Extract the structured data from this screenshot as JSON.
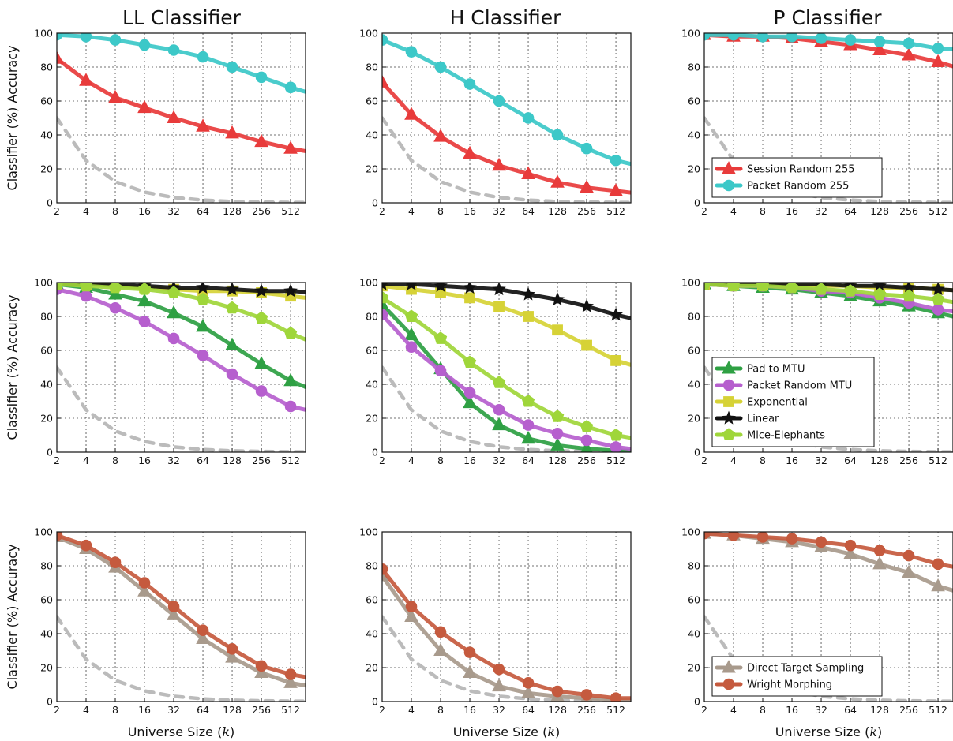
{
  "figure": {
    "column_titles": [
      "LL Classifier",
      "H Classifier",
      "P Classifier"
    ],
    "ylabel": "Classifier (%) Accuracy",
    "xlabel": "Universe Size (",
    "xlabel_var": "k",
    "xlabel_end": ")"
  },
  "chart_data": [
    {
      "type": "line",
      "row": 0,
      "col": 0,
      "title": "LL Classifier",
      "ylabel": "Classifier (%) Accuracy",
      "xlabel": "",
      "x": [
        2,
        4,
        8,
        16,
        32,
        64,
        128,
        256,
        512,
        1024
      ],
      "xticks": [
        "2",
        "4",
        "8",
        "16",
        "32",
        "64",
        "128",
        "256",
        "512"
      ],
      "yticks": [
        0,
        20,
        40,
        60,
        80,
        100
      ],
      "ylim": [
        0,
        100
      ],
      "grid": true,
      "xscale": "log2",
      "series": [
        {
          "name": "",
          "color": "#bbbbbb",
          "style": "dashed",
          "marker": "none",
          "values": [
            50,
            25,
            12.5,
            6.3,
            3.1,
            1.6,
            0.8,
            0.4,
            0.2,
            0.1
          ]
        },
        {
          "name": "Session Random 255",
          "color": "#e83b3b",
          "marker": "triangle",
          "values": [
            85,
            72,
            62,
            56,
            50,
            45,
            41,
            36,
            32,
            29
          ]
        },
        {
          "name": "Packet Random 255",
          "color": "#3cc8c8",
          "marker": "circle",
          "values": [
            99,
            98,
            96,
            93,
            90,
            86,
            80,
            74,
            68,
            63
          ]
        }
      ]
    },
    {
      "type": "line",
      "row": 0,
      "col": 1,
      "title": "H Classifier",
      "ylabel": "",
      "xlabel": "",
      "x": [
        2,
        4,
        8,
        16,
        32,
        64,
        128,
        256,
        512,
        1024
      ],
      "xticks": [
        "2",
        "4",
        "8",
        "16",
        "32",
        "64",
        "128",
        "256",
        "512"
      ],
      "yticks": [
        0,
        20,
        40,
        60,
        80,
        100
      ],
      "ylim": [
        0,
        100
      ],
      "grid": true,
      "xscale": "log2",
      "series": [
        {
          "name": "",
          "color": "#bbbbbb",
          "style": "dashed",
          "marker": "none",
          "values": [
            50,
            25,
            12.5,
            6.3,
            3.1,
            1.6,
            0.8,
            0.4,
            0.2,
            0.1
          ]
        },
        {
          "name": "Session Random 255",
          "color": "#e83b3b",
          "marker": "triangle",
          "values": [
            71,
            52,
            39,
            29,
            22,
            17,
            12,
            9,
            7,
            5
          ]
        },
        {
          "name": "Packet Random 255",
          "color": "#3cc8c8",
          "marker": "circle",
          "values": [
            96,
            89,
            80,
            70,
            60,
            50,
            40,
            32,
            25,
            21
          ]
        }
      ]
    },
    {
      "type": "line",
      "row": 0,
      "col": 2,
      "title": "P Classifier",
      "ylabel": "",
      "xlabel": "",
      "x": [
        2,
        4,
        8,
        16,
        32,
        64,
        128,
        256,
        512,
        1024
      ],
      "xticks": [
        "2",
        "4",
        "8",
        "16",
        "32",
        "64",
        "128",
        "256",
        "512"
      ],
      "yticks": [
        0,
        20,
        40,
        60,
        80,
        100
      ],
      "ylim": [
        0,
        100
      ],
      "grid": true,
      "xscale": "log2",
      "legend": "lower-left",
      "series": [
        {
          "name": "",
          "color": "#bbbbbb",
          "style": "dashed",
          "marker": "none",
          "values": [
            50,
            25,
            12.5,
            6.3,
            3.1,
            1.6,
            0.8,
            0.4,
            0.2,
            0.1
          ]
        },
        {
          "name": "Session Random 255",
          "color": "#e83b3b",
          "marker": "triangle",
          "values": [
            99,
            98,
            98,
            97,
            95,
            93,
            90,
            87,
            83,
            78
          ]
        },
        {
          "name": "Packet Random 255",
          "color": "#3cc8c8",
          "marker": "circle",
          "values": [
            99,
            99,
            98,
            98,
            97,
            96,
            95,
            94,
            91,
            90
          ]
        }
      ]
    },
    {
      "type": "line",
      "row": 1,
      "col": 0,
      "title": "",
      "ylabel": "Classifier (%) Accuracy",
      "xlabel": "",
      "x": [
        2,
        4,
        8,
        16,
        32,
        64,
        128,
        256,
        512,
        1024
      ],
      "xticks": [
        "2",
        "4",
        "8",
        "16",
        "32",
        "64",
        "128",
        "256",
        "512"
      ],
      "yticks": [
        0,
        20,
        40,
        60,
        80,
        100
      ],
      "ylim": [
        0,
        100
      ],
      "grid": true,
      "xscale": "log2",
      "series": [
        {
          "name": "",
          "color": "#bbbbbb",
          "style": "dashed",
          "marker": "none",
          "values": [
            50,
            25,
            12.5,
            6.3,
            3.1,
            1.6,
            0.8,
            0.4,
            0.2,
            0.1
          ]
        },
        {
          "name": "Pad to MTU",
          "color": "#2ea043",
          "marker": "triangle",
          "values": [
            99,
            97,
            93,
            89,
            82,
            74,
            63,
            52,
            42,
            35
          ]
        },
        {
          "name": "Packet Random MTU",
          "color": "#b65fce",
          "marker": "circle",
          "values": [
            96,
            92,
            85,
            77,
            67,
            57,
            46,
            36,
            27,
            23
          ]
        },
        {
          "name": "Exponential",
          "color": "#d6d236",
          "marker": "square",
          "values": [
            99,
            99,
            98,
            97,
            96,
            95,
            95,
            94,
            92,
            90
          ]
        },
        {
          "name": "Linear",
          "color": "#111111",
          "marker": "star",
          "values": [
            99,
            99,
            99,
            98,
            97,
            97,
            96,
            95,
            95,
            94
          ]
        },
        {
          "name": "Mice-Elephants",
          "color": "#9fd63a",
          "marker": "pentagon",
          "values": [
            99,
            98,
            97,
            96,
            94,
            90,
            85,
            79,
            70,
            63
          ]
        }
      ]
    },
    {
      "type": "line",
      "row": 1,
      "col": 1,
      "title": "",
      "ylabel": "",
      "xlabel": "",
      "x": [
        2,
        4,
        8,
        16,
        32,
        64,
        128,
        256,
        512,
        1024
      ],
      "xticks": [
        "2",
        "4",
        "8",
        "16",
        "32",
        "64",
        "128",
        "256",
        "512"
      ],
      "yticks": [
        0,
        20,
        40,
        60,
        80,
        100
      ],
      "ylim": [
        0,
        100
      ],
      "grid": true,
      "xscale": "log2",
      "series": [
        {
          "name": "",
          "color": "#bbbbbb",
          "style": "dashed",
          "marker": "none",
          "values": [
            50,
            25,
            12.5,
            6.3,
            3.1,
            1.6,
            0.8,
            0.4,
            0.2,
            0.1
          ]
        },
        {
          "name": "Pad to MTU",
          "color": "#2ea043",
          "marker": "triangle",
          "values": [
            87,
            69,
            49,
            29,
            16,
            8,
            4,
            2,
            1,
            0.5
          ]
        },
        {
          "name": "Packet Random MTU",
          "color": "#b65fce",
          "marker": "circle",
          "values": [
            81,
            62,
            48,
            35,
            25,
            16,
            11,
            7,
            3,
            1
          ]
        },
        {
          "name": "Exponential",
          "color": "#d6d236",
          "marker": "square",
          "values": [
            98,
            96,
            94,
            91,
            86,
            80,
            72,
            63,
            54,
            49
          ]
        },
        {
          "name": "Linear",
          "color": "#111111",
          "marker": "star",
          "values": [
            99,
            99,
            98,
            97,
            96,
            93,
            90,
            86,
            81,
            77
          ]
        },
        {
          "name": "Mice-Elephants",
          "color": "#9fd63a",
          "marker": "pentagon",
          "values": [
            91,
            80,
            67,
            53,
            41,
            30,
            21,
            15,
            10,
            7
          ]
        }
      ]
    },
    {
      "type": "line",
      "row": 1,
      "col": 2,
      "title": "",
      "ylabel": "",
      "xlabel": "",
      "x": [
        2,
        4,
        8,
        16,
        32,
        64,
        128,
        256,
        512,
        1024
      ],
      "xticks": [
        "2",
        "4",
        "8",
        "16",
        "32",
        "64",
        "128",
        "256",
        "512"
      ],
      "yticks": [
        0,
        20,
        40,
        60,
        80,
        100
      ],
      "ylim": [
        0,
        100
      ],
      "grid": true,
      "xscale": "log2",
      "legend": "lower-left",
      "series": [
        {
          "name": "",
          "color": "#bbbbbb",
          "style": "dashed",
          "marker": "none",
          "values": [
            50,
            25,
            12.5,
            6.3,
            3.1,
            1.6,
            0.8,
            0.4,
            0.2,
            0.1
          ]
        },
        {
          "name": "Pad to MTU",
          "color": "#2ea043",
          "marker": "triangle",
          "values": [
            99,
            98,
            97,
            96,
            94,
            92,
            89,
            86,
            82,
            78
          ]
        },
        {
          "name": "Packet Random MTU",
          "color": "#b65fce",
          "marker": "circle",
          "values": [
            99,
            98,
            98,
            97,
            95,
            94,
            91,
            88,
            84,
            82
          ]
        },
        {
          "name": "Exponential",
          "color": "#d6d236",
          "marker": "square",
          "values": [
            99,
            99,
            99,
            98,
            98,
            98,
            97,
            97,
            96,
            95
          ]
        },
        {
          "name": "Linear",
          "color": "#111111",
          "marker": "star",
          "values": [
            99,
            99,
            99,
            99,
            99,
            98,
            98,
            97,
            96,
            95
          ]
        },
        {
          "name": "Mice-Elephants",
          "color": "#9fd63a",
          "marker": "pentagon",
          "values": [
            99,
            98,
            98,
            97,
            96,
            95,
            93,
            92,
            90,
            87
          ]
        }
      ]
    },
    {
      "type": "line",
      "row": 2,
      "col": 0,
      "title": "",
      "ylabel": "Classifier (%) Accuracy",
      "xlabel": "Universe Size (k)",
      "x": [
        2,
        4,
        8,
        16,
        32,
        64,
        128,
        256,
        512,
        1024
      ],
      "xticks": [
        "2",
        "4",
        "8",
        "16",
        "32",
        "64",
        "128",
        "256",
        "512"
      ],
      "yticks": [
        0,
        20,
        40,
        60,
        80,
        100
      ],
      "ylim": [
        0,
        100
      ],
      "grid": true,
      "xscale": "log2",
      "series": [
        {
          "name": "",
          "color": "#bbbbbb",
          "style": "dashed",
          "marker": "none",
          "values": [
            50,
            25,
            12.5,
            6.3,
            3.1,
            1.6,
            0.8,
            0.4,
            0.2,
            0.1
          ]
        },
        {
          "name": "Direct Target Sampling",
          "color": "#a89a8c",
          "marker": "triangle",
          "values": [
            97,
            90,
            79,
            65,
            51,
            37,
            26,
            17,
            11,
            8
          ]
        },
        {
          "name": "Wright Morphing",
          "color": "#c55a3e",
          "marker": "circle",
          "values": [
            98,
            92,
            82,
            70,
            56,
            42,
            31,
            21,
            16,
            13
          ]
        }
      ]
    },
    {
      "type": "line",
      "row": 2,
      "col": 1,
      "title": "",
      "ylabel": "",
      "xlabel": "Universe Size (k)",
      "x": [
        2,
        4,
        8,
        16,
        32,
        64,
        128,
        256,
        512,
        1024
      ],
      "xticks": [
        "2",
        "4",
        "8",
        "16",
        "32",
        "64",
        "128",
        "256",
        "512"
      ],
      "yticks": [
        0,
        20,
        40,
        60,
        80,
        100
      ],
      "ylim": [
        0,
        100
      ],
      "grid": true,
      "xscale": "log2",
      "series": [
        {
          "name": "",
          "color": "#bbbbbb",
          "style": "dashed",
          "marker": "none",
          "values": [
            50,
            25,
            12.5,
            6.3,
            3.1,
            1.6,
            0.8,
            0.4,
            0.2,
            0.1
          ]
        },
        {
          "name": "Direct Target Sampling",
          "color": "#a89a8c",
          "marker": "triangle",
          "values": [
            74,
            50,
            30,
            17,
            9,
            5,
            3,
            2,
            1,
            1
          ]
        },
        {
          "name": "Wright Morphing",
          "color": "#c55a3e",
          "marker": "circle",
          "values": [
            78,
            56,
            41,
            29,
            19,
            11,
            6,
            4,
            2,
            2
          ]
        }
      ]
    },
    {
      "type": "line",
      "row": 2,
      "col": 2,
      "title": "",
      "ylabel": "",
      "xlabel": "Universe Size (k)",
      "x": [
        2,
        4,
        8,
        16,
        32,
        64,
        128,
        256,
        512,
        1024
      ],
      "xticks": [
        "2",
        "4",
        "8",
        "16",
        "32",
        "64",
        "128",
        "256",
        "512"
      ],
      "yticks": [
        0,
        20,
        40,
        60,
        80,
        100
      ],
      "ylim": [
        0,
        100
      ],
      "grid": true,
      "xscale": "log2",
      "legend": "lower-left",
      "series": [
        {
          "name": "",
          "color": "#bbbbbb",
          "style": "dashed",
          "marker": "none",
          "values": [
            50,
            25,
            12.5,
            6.3,
            3.1,
            1.6,
            0.8,
            0.4,
            0.2,
            0.1
          ]
        },
        {
          "name": "Direct Target Sampling",
          "color": "#a89a8c",
          "marker": "triangle",
          "values": [
            99,
            98,
            96,
            94,
            91,
            87,
            81,
            76,
            68,
            63
          ]
        },
        {
          "name": "Wright Morphing",
          "color": "#c55a3e",
          "marker": "circle",
          "values": [
            99,
            98,
            97,
            96,
            94,
            92,
            89,
            86,
            81,
            78
          ]
        }
      ]
    }
  ]
}
